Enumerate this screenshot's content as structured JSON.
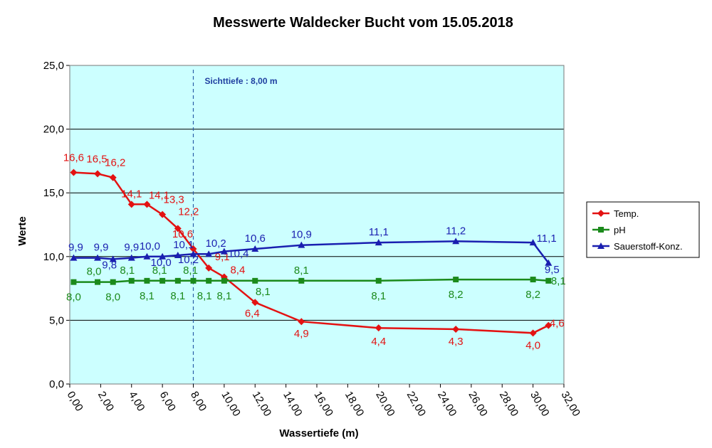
{
  "chart_data": {
    "type": "line",
    "title": "Messwerte Waldecker Bucht vom 15.05.2018",
    "xlabel": "Wassertiefe (m)",
    "ylabel": "Werte",
    "xlim": [
      0,
      32
    ],
    "ylim": [
      0,
      25
    ],
    "xticks": [
      0,
      2,
      4,
      6,
      8,
      10,
      12,
      14,
      16,
      18,
      20,
      22,
      24,
      26,
      28,
      30,
      32
    ],
    "xtick_labels": [
      "0,00",
      "2,00",
      "4,00",
      "6,00",
      "8,00",
      "10,00",
      "12,00",
      "14,00",
      "16,00",
      "18,00",
      "20,00",
      "22,00",
      "24,00",
      "26,00",
      "28,00",
      "30,00",
      "32,00"
    ],
    "yticks": [
      0,
      5,
      10,
      15,
      20,
      25
    ],
    "ytick_labels": [
      "0,0",
      "5,0",
      "10,0",
      "15,0",
      "20,0",
      "25,0"
    ],
    "grid": "horizontal",
    "legend_position": "right",
    "plot_background": "#ccffff",
    "annotation": {
      "text": "Sichttiefe : 8,00 m",
      "x": 8,
      "color": "#1f3fa0"
    },
    "series": [
      {
        "name": "Temp.",
        "color": "#e31212",
        "marker": "diamond",
        "x": [
          0.25,
          1.8,
          2.8,
          4,
          5,
          6,
          7,
          8,
          9,
          10,
          12,
          15,
          20,
          25,
          30,
          31
        ],
        "values": [
          16.6,
          16.5,
          16.2,
          14.1,
          14.1,
          13.3,
          12.2,
          10.6,
          9.1,
          8.4,
          6.4,
          4.9,
          4.4,
          4.3,
          4.0,
          4.6
        ],
        "labels": [
          "16,6",
          "16,5",
          "16,2",
          "14,1",
          "14,1",
          "13,3",
          "12,2",
          "10,6",
          "9,1",
          "8,4",
          "6,4",
          "4,9",
          "4,4",
          "4,3",
          "4,0",
          "4,6"
        ]
      },
      {
        "name": "pH",
        "color": "#1b8a1b",
        "marker": "square",
        "x": [
          0.25,
          1.8,
          2.8,
          4,
          5,
          6,
          7,
          8,
          9,
          10,
          12,
          15,
          20,
          25,
          30,
          31
        ],
        "values": [
          8.0,
          8.0,
          8.0,
          8.1,
          8.1,
          8.1,
          8.1,
          8.1,
          8.1,
          8.1,
          8.1,
          8.1,
          8.1,
          8.2,
          8.2,
          8.1
        ],
        "labels": [
          "8,0",
          "8,0",
          "8,0",
          "8,1",
          "8,1",
          "8,1",
          "8,1",
          "8,1",
          "8,1",
          "8,1",
          "8,1",
          "8,1",
          "8,1",
          "8,2",
          "8,2",
          "8,1"
        ]
      },
      {
        "name": "Sauerstoff-Konz.",
        "color": "#1a1fb0",
        "marker": "triangle",
        "x": [
          0.25,
          1.8,
          2.8,
          4,
          5,
          6,
          7,
          8,
          9,
          10,
          12,
          15,
          20,
          25,
          30,
          31
        ],
        "values": [
          9.9,
          9.9,
          9.8,
          9.9,
          10.0,
          10.0,
          10.1,
          10.2,
          10.2,
          10.4,
          10.6,
          10.9,
          11.1,
          11.2,
          11.1,
          9.5
        ],
        "labels": [
          "9,9",
          "9,9",
          "9,8",
          "9,9",
          "10,0",
          "10,0",
          "10,1",
          "10,2",
          "10,2",
          "10,4",
          "10,6",
          "10,9",
          "11,1",
          "11,2",
          "11,1",
          "9,5"
        ]
      }
    ]
  }
}
